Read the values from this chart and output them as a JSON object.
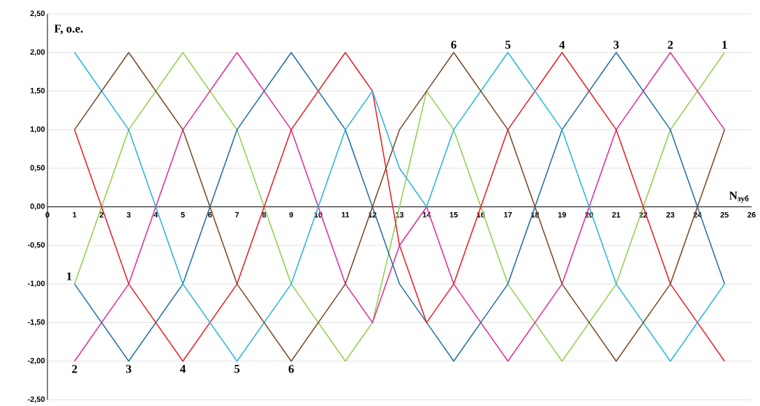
{
  "chart_data": {
    "type": "line",
    "xlabel": "N$_{зуб}$",
    "ylabel": "F, o.e.",
    "xlim": [
      0,
      26
    ],
    "xticks": [
      0,
      1,
      2,
      3,
      4,
      5,
      6,
      7,
      8,
      9,
      10,
      11,
      12,
      13,
      14,
      15,
      16,
      17,
      18,
      19,
      20,
      21,
      22,
      23,
      24,
      25,
      26
    ],
    "ylim": [
      -2.5,
      2.5
    ],
    "yticks": [
      {
        "value": -2.5,
        "label": "-2,50"
      },
      {
        "value": -2,
        "label": "-2,00"
      },
      {
        "value": -1.5,
        "label": "-1,50"
      },
      {
        "value": -1,
        "label": "-1,00"
      },
      {
        "value": -0.5,
        "label": "-0,50"
      },
      {
        "value": 0,
        "label": "0,00"
      },
      {
        "value": 0.5,
        "label": "0,50"
      },
      {
        "value": 1,
        "label": "1,00"
      },
      {
        "value": 1.5,
        "label": "1,50"
      },
      {
        "value": 2,
        "label": "2,00"
      },
      {
        "value": 2.5,
        "label": "2,50"
      }
    ],
    "grid": "y",
    "legend": false,
    "marker": "none",
    "line_style": "solid",
    "series": [
      {
        "color": "#92d050",
        "x": [
          1,
          3,
          5,
          7,
          9,
          11,
          12,
          14,
          15,
          17,
          19,
          21,
          23,
          25
        ],
        "values": [
          -1,
          1,
          2,
          1,
          -1,
          -2,
          -1.5,
          1.5,
          1,
          -1,
          -2,
          -1,
          1,
          2
        ]
      },
      {
        "color": "#e0309a",
        "x": [
          1,
          3,
          5,
          7,
          9,
          11,
          12,
          13,
          14,
          15,
          17,
          19,
          21,
          23,
          25
        ],
        "values": [
          -2,
          -1,
          1,
          2,
          1,
          -1,
          -1.5,
          -0.5,
          0,
          -1,
          -2,
          -1,
          1,
          2,
          1
        ]
      },
      {
        "color": "#2470a8",
        "x": [
          1,
          3,
          5,
          7,
          9,
          11,
          12,
          13,
          14,
          15,
          17,
          19,
          21,
          23,
          25
        ],
        "values": [
          -1,
          -2,
          -1,
          1,
          2,
          1,
          0,
          -1,
          -1.5,
          -2,
          -1,
          1,
          2,
          1,
          -1
        ]
      },
      {
        "color": "#e8202a",
        "x": [
          1,
          3,
          5,
          7,
          9,
          11,
          12,
          13,
          14,
          15,
          17,
          19,
          21,
          23,
          25
        ],
        "values": [
          1,
          -1,
          -2,
          -1,
          1,
          2,
          1.5,
          -0.5,
          -1.5,
          -1,
          1,
          2,
          1,
          -1,
          -2
        ]
      },
      {
        "color": "#2bb5e0",
        "x": [
          1,
          3,
          5,
          7,
          9,
          11,
          12,
          13,
          14,
          15,
          17,
          19,
          21,
          23,
          25
        ],
        "values": [
          2,
          1,
          -1,
          -2,
          -1,
          1,
          1.5,
          0.5,
          0,
          1,
          2,
          1,
          -1,
          -2,
          -1
        ]
      },
      {
        "color": "#7b4a2a",
        "x": [
          1,
          3,
          5,
          7,
          9,
          11,
          12,
          13,
          14,
          15,
          17,
          19,
          21,
          23,
          25
        ],
        "values": [
          1,
          2,
          1,
          -1,
          -2,
          -1,
          0,
          1,
          1.5,
          2,
          1,
          -1,
          -2,
          -1,
          1
        ]
      }
    ],
    "annotations": [
      {
        "text": "1",
        "x": 1,
        "y": -1
      },
      {
        "text": "2",
        "x": 1,
        "y": -2
      },
      {
        "text": "3",
        "x": 3,
        "y": -2
      },
      {
        "text": "4",
        "x": 5,
        "y": -2
      },
      {
        "text": "5",
        "x": 7,
        "y": -2
      },
      {
        "text": "6",
        "x": 9,
        "y": -2
      },
      {
        "text": "6",
        "x": 15,
        "y": 2
      },
      {
        "text": "5",
        "x": 17,
        "y": 2
      },
      {
        "text": "4",
        "x": 19,
        "y": 2
      },
      {
        "text": "3",
        "x": 21,
        "y": 2
      },
      {
        "text": "2",
        "x": 23,
        "y": 2
      },
      {
        "text": "1",
        "x": 25,
        "y": 2
      }
    ]
  }
}
